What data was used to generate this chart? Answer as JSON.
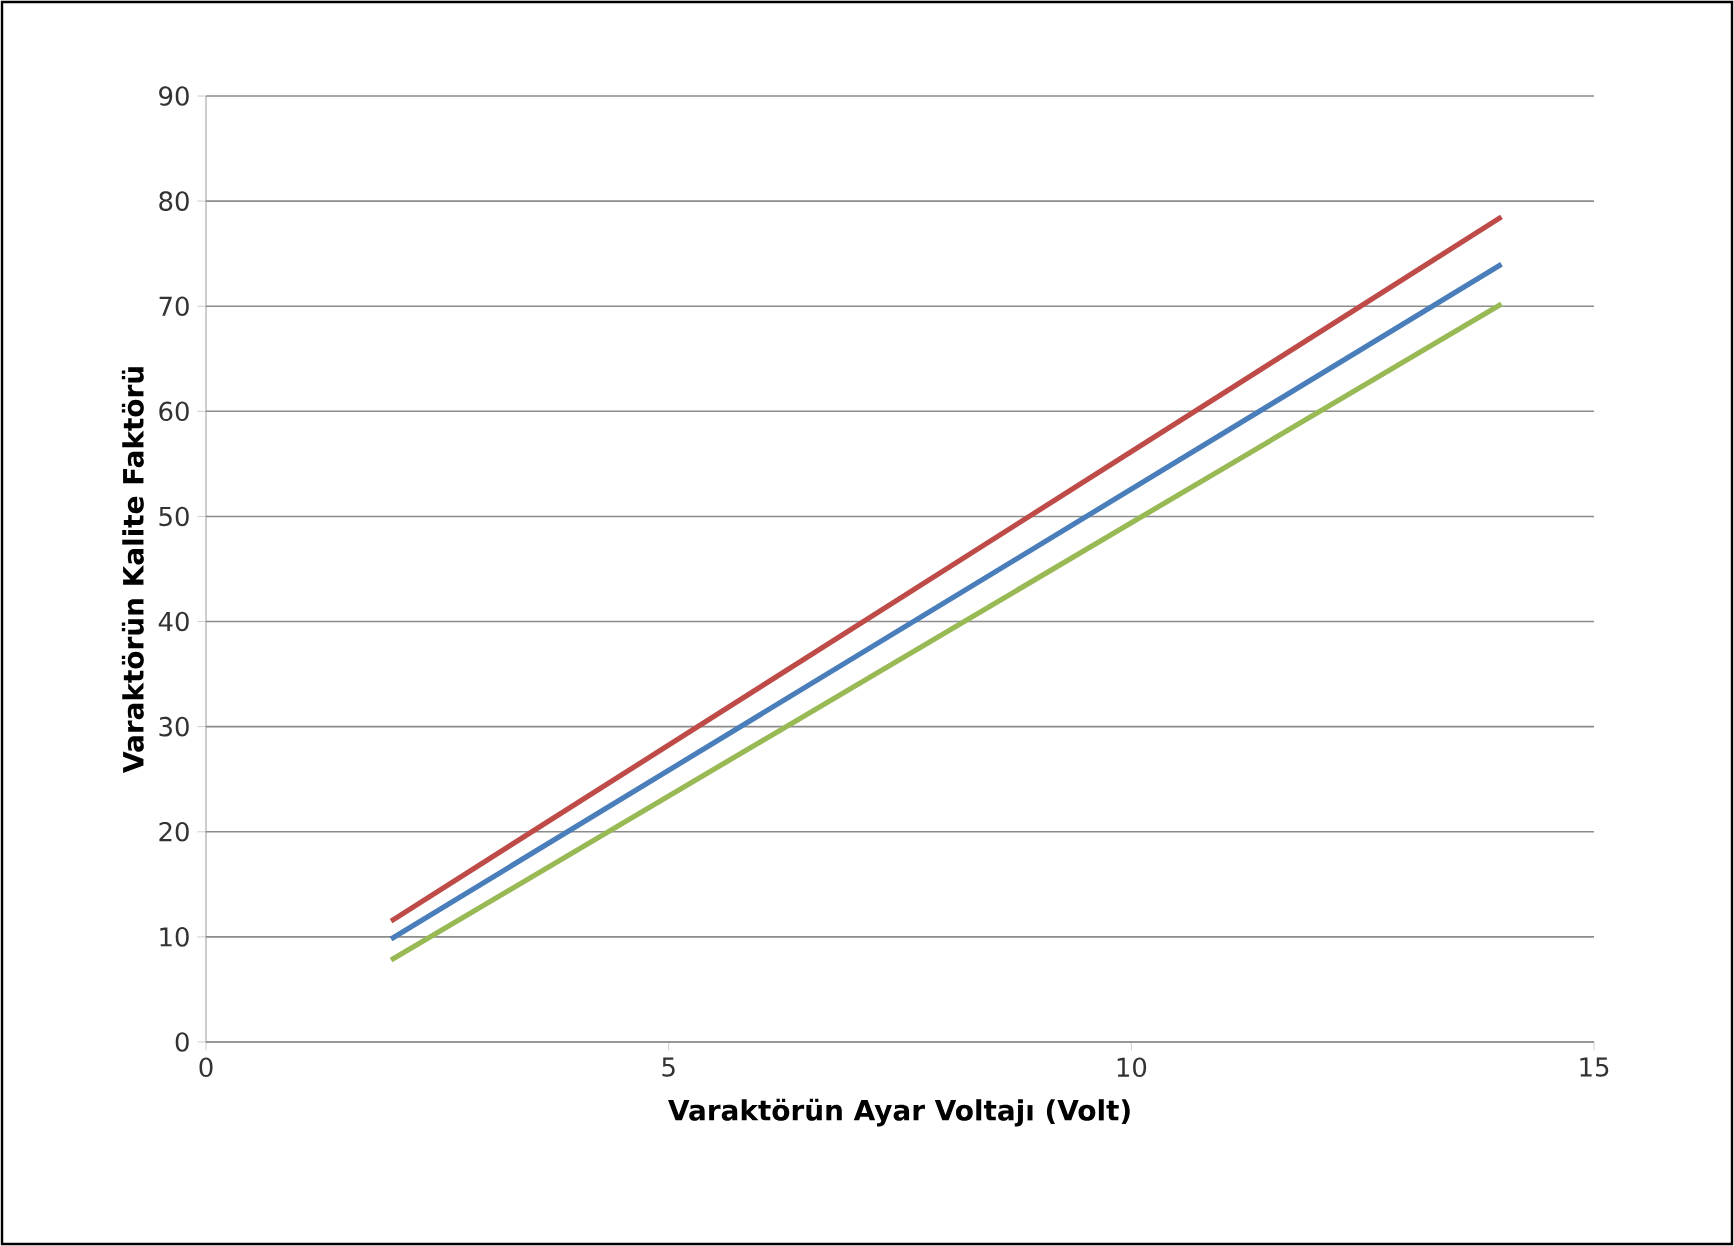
{
  "chart_data": {
    "type": "line",
    "xlabel": "Varaktörün Ayar Voltajı (Volt)",
    "ylabel": "Varaktörün Kalite Faktörü",
    "xlim": [
      0,
      15
    ],
    "xticks": [
      0,
      5,
      10,
      15
    ],
    "ylim": [
      0,
      90
    ],
    "yticks": [
      0,
      10,
      20,
      30,
      40,
      50,
      60,
      70,
      80,
      90
    ],
    "grid": "y",
    "marker": "none",
    "line_style": "solid",
    "x": [
      2,
      14
    ],
    "series": [
      {
        "color": "#be4b48",
        "values": [
          11.5,
          78.5
        ]
      },
      {
        "color": "#4a7ebb",
        "values": [
          9.8,
          74
        ]
      },
      {
        "color": "#98b954",
        "values": [
          7.8,
          70.2
        ]
      }
    ]
  }
}
